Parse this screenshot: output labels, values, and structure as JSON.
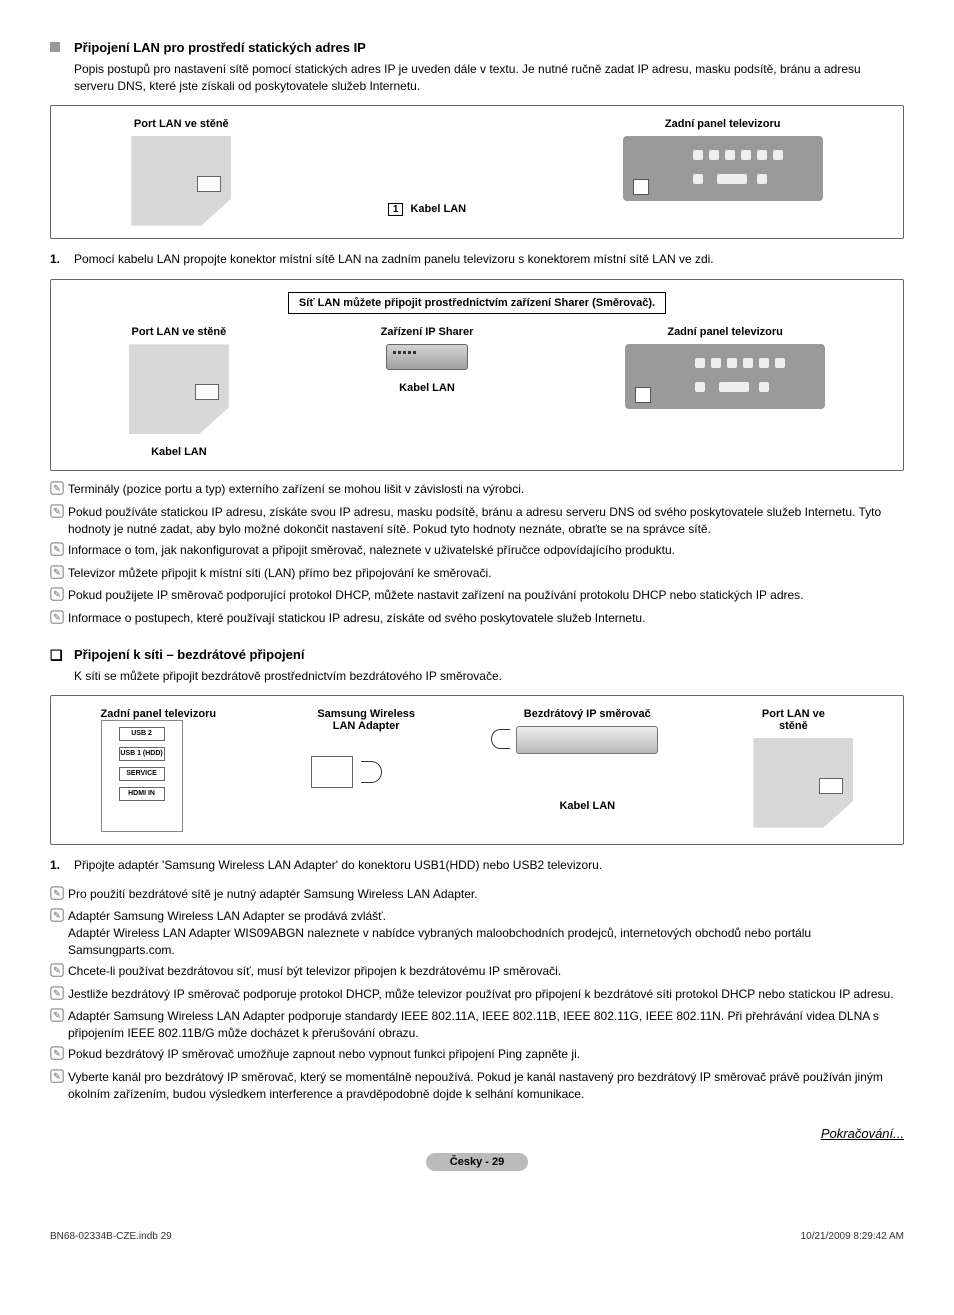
{
  "section1": {
    "title": "Připojení LAN pro prostředí statických adres IP",
    "desc": "Popis postupů pro nastavení sítě pomocí statických adres IP je uveden dále v textu. Je nutné ručně zadat IP adresu, masku podsítě, bránu a adresu serveru DNS, které jste získali od poskytovatele služeb Internetu."
  },
  "diagram1": {
    "wall_label": "Port LAN ve stěně",
    "tv_label": "Zadní panel televizoru",
    "cable_num": "1",
    "cable_label": "Kabel LAN"
  },
  "step1_1": "Pomocí kabelu LAN propojte konektor místní sítě LAN na zadním panelu televizoru s konektorem místní sítě LAN ve zdi.",
  "diagram2": {
    "banner": "Síť LAN můžete připojit prostřednictvím zařízení Sharer (Směrovač).",
    "wall_label": "Port LAN ve stěně",
    "sharer_label": "Zařízení IP Sharer",
    "tv_label": "Zadní panel televizoru",
    "cable1": "Kabel LAN",
    "cable2": "Kabel LAN"
  },
  "notes1": [
    "Terminály (pozice portu a typ) externího zařízení se mohou lišit v závislosti na výrobci.",
    "Pokud používáte statickou IP adresu, získáte svou IP adresu, masku podsítě, bránu a adresu serveru DNS od svého poskytovatele služeb Internetu. Tyto hodnoty je nutné zadat, aby bylo možné dokončit nastavení sítě. Pokud tyto hodnoty neznáte, obraťte se na správce sítě.",
    "Informace o tom, jak nakonfigurovat a připojit směrovač, naleznete v uživatelské příručce odpovídajícího produktu.",
    "Televizor můžete připojit k místní síti (LAN) přímo bez připojování ke směrovači.",
    "Pokud použijete IP směrovač podporující protokol DHCP, můžete nastavit zařízení na používání protokolu DHCP nebo statických IP adres.",
    "Informace o postupech, které používají statickou IP adresu, získáte od svého poskytovatele služeb Internetu."
  ],
  "section2": {
    "title": "Připojení k síti – bezdrátové připojení",
    "desc": "K síti se můžete připojit bezdrátově prostřednictvím bezdrátového IP směrovače."
  },
  "diagram3": {
    "tv_label": "Zadní panel televizoru",
    "adapter_label": "Samsung Wireless LAN Adapter",
    "router_label": "Bezdrátový IP směrovač",
    "wall_label": "Port LAN ve stěně",
    "cable": "Kabel LAN",
    "usb2": "USB 2",
    "usb1": "USB 1 (HDD)",
    "service": "SERVICE",
    "hdmi": "HDMI IN"
  },
  "step2_1": "Připojte adaptér 'Samsung Wireless LAN Adapter' do konektoru USB1(HDD) nebo USB2 televizoru.",
  "notes2": [
    "Pro použití bezdrátové sítě je nutný adaptér Samsung Wireless LAN Adapter.",
    "Adaptér Samsung Wireless LAN Adapter se prodává zvlášť.\nAdaptér Wireless LAN Adapter WIS09ABGN naleznete v nabídce vybraných maloobchodních prodejců, internetových obchodů nebo portálu Samsungparts.com.",
    "Chcete-li používat bezdrátovou síť, musí být televizor připojen k bezdrátovému IP směrovači.",
    "Jestliže bezdrátový IP směrovač podporuje protokol DHCP, může televizor používat pro připojení k bezdrátové síti protokol DHCP nebo statickou IP adresu.",
    "Adaptér Samsung Wireless LAN Adapter podporuje standardy IEEE 802.11A, IEEE 802.11B, IEEE 802.11G, IEEE 802.11N. Při přehrávání videa DLNA s připojením IEEE 802.11B/G může docházet k přerušování obrazu.",
    "Pokud bezdrátový IP směrovač umožňuje zapnout nebo vypnout funkci připojení Ping zapněte ji.",
    "Vyberte kanál pro bezdrátový IP směrovač, který se momentálně nepoužívá. Pokud je kanál nastavený pro bezdrátový IP směrovač právě používán jiným okolním zařízením, budou výsledkem interference a pravděpodobně dojde k selhání komunikace."
  ],
  "continue": "Pokračování...",
  "page_label": "Česky - 29",
  "meta": {
    "left": "BN68-02334B-CZE.indb   29",
    "right": "10/21/2009   8:29:42 AM"
  }
}
